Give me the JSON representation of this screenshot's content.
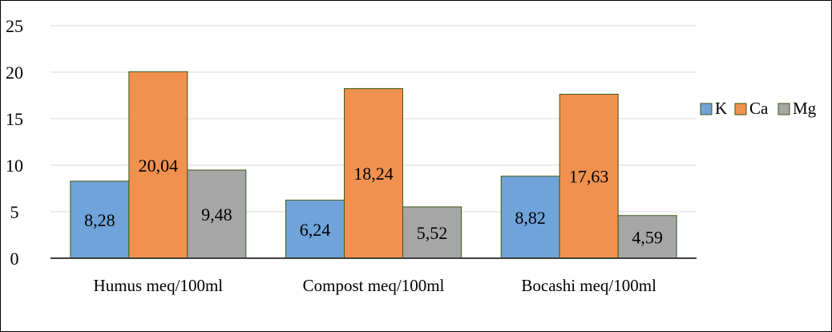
{
  "chart_data": {
    "type": "bar",
    "title": "",
    "xlabel": "",
    "ylabel": "",
    "categories": [
      "Humus meq/100ml",
      "Compost meq/100ml",
      "Bocashi meq/100ml"
    ],
    "series": [
      {
        "name": "K",
        "values": [
          8.28,
          6.24,
          8.82
        ],
        "labels": [
          "8,28",
          "6,24",
          "8,82"
        ],
        "color": "#6fa3d9"
      },
      {
        "name": "Ca",
        "values": [
          20.04,
          18.24,
          17.63
        ],
        "labels": [
          "20,04",
          "18,24",
          "17,63"
        ],
        "color": "#f0914f"
      },
      {
        "name": "Mg",
        "values": [
          9.48,
          5.52,
          4.59
        ],
        "labels": [
          "9,48",
          "5,52",
          "4,59"
        ],
        "color": "#a6a6a6"
      }
    ],
    "ylim": [
      0,
      25
    ],
    "yticks": [
      0,
      5,
      10,
      15,
      20,
      25
    ],
    "grid": true,
    "legend_position": "right",
    "colors": {
      "bar_outline": "#3d5a1a",
      "grid": "#d9d9d9",
      "axis": "#404040"
    }
  }
}
